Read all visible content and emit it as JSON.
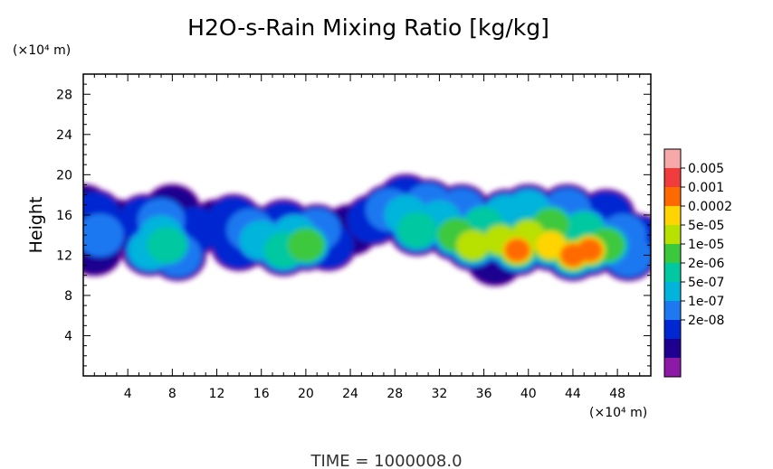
{
  "chart_data": {
    "type": "heatmap",
    "title": "H2O-s-Rain Mixing Ratio [kg/kg]",
    "ylabel": "Height",
    "x_unit": "(×10⁴ m)",
    "y_unit": "(×10⁴ m)",
    "xlim": [
      0,
      51
    ],
    "ylim": [
      0,
      30
    ],
    "x_ticks": [
      4,
      8,
      12,
      16,
      20,
      24,
      28,
      32,
      36,
      40,
      44,
      48
    ],
    "y_ticks": [
      4,
      8,
      12,
      16,
      20,
      24,
      28
    ],
    "footer": "TIME =  1000008.0",
    "colorbar": {
      "labels": [
        "0.005",
        "0.001",
        "0.0002",
        "5e-05",
        "1e-05",
        "2e-06",
        "5e-07",
        "1e-07",
        "2e-08"
      ],
      "colors": [
        "#f7a8a8",
        "#f03c3c",
        "#ff6a00",
        "#ffd400",
        "#b8e000",
        "#3cc83c",
        "#00c8a0",
        "#00b4dc",
        "#1e78f0",
        "#0028d2",
        "#1e0090",
        "#8c1aa6"
      ]
    },
    "cells": [
      {
        "x": 0,
        "y": 16.5,
        "level": 1
      },
      {
        "x": 1,
        "y": 16,
        "level": 2
      },
      {
        "x": 1.5,
        "y": 14,
        "level": 3
      },
      {
        "x": 1,
        "y": 12.5,
        "level": 1
      },
      {
        "x": 3,
        "y": 15,
        "level": 1
      },
      {
        "x": 5.5,
        "y": 15.5,
        "level": 2
      },
      {
        "x": 7,
        "y": 15.5,
        "level": 3
      },
      {
        "x": 7,
        "y": 14,
        "level": 4
      },
      {
        "x": 7.5,
        "y": 13,
        "level": 5
      },
      {
        "x": 6,
        "y": 12.5,
        "level": 4
      },
      {
        "x": 8.5,
        "y": 12,
        "level": 3
      },
      {
        "x": 8,
        "y": 16.5,
        "level": 1
      },
      {
        "x": 10,
        "y": 14.5,
        "level": 2
      },
      {
        "x": 12,
        "y": 15,
        "level": 1
      },
      {
        "x": 13.5,
        "y": 15.5,
        "level": 2
      },
      {
        "x": 15,
        "y": 14.5,
        "level": 3
      },
      {
        "x": 16,
        "y": 13.5,
        "level": 4
      },
      {
        "x": 14,
        "y": 13,
        "level": 2
      },
      {
        "x": 18,
        "y": 15,
        "level": 2
      },
      {
        "x": 19,
        "y": 14,
        "level": 4
      },
      {
        "x": 20,
        "y": 13,
        "level": 6
      },
      {
        "x": 18,
        "y": 12.5,
        "level": 5
      },
      {
        "x": 21,
        "y": 14.5,
        "level": 3
      },
      {
        "x": 22,
        "y": 13,
        "level": 2
      },
      {
        "x": 24,
        "y": 14.5,
        "level": 1
      },
      {
        "x": 26,
        "y": 15.5,
        "level": 2
      },
      {
        "x": 27.5,
        "y": 16.5,
        "level": 3
      },
      {
        "x": 29,
        "y": 16,
        "level": 4
      },
      {
        "x": 30,
        "y": 14.5,
        "level": 5
      },
      {
        "x": 29,
        "y": 17.5,
        "level": 2
      },
      {
        "x": 31,
        "y": 17,
        "level": 3
      },
      {
        "x": 32,
        "y": 15.5,
        "level": 4
      },
      {
        "x": 33.5,
        "y": 14,
        "level": 6
      },
      {
        "x": 35,
        "y": 13,
        "level": 7
      },
      {
        "x": 34,
        "y": 16.5,
        "level": 3
      },
      {
        "x": 36,
        "y": 15,
        "level": 5
      },
      {
        "x": 37.5,
        "y": 13.5,
        "level": 7
      },
      {
        "x": 39,
        "y": 12.5,
        "level": 9
      },
      {
        "x": 40,
        "y": 14,
        "level": 7
      },
      {
        "x": 38,
        "y": 16,
        "level": 4
      },
      {
        "x": 40,
        "y": 16.5,
        "level": 4
      },
      {
        "x": 42,
        "y": 15,
        "level": 6
      },
      {
        "x": 42,
        "y": 13,
        "level": 8
      },
      {
        "x": 44,
        "y": 12,
        "level": 9
      },
      {
        "x": 45.5,
        "y": 12.5,
        "level": 9
      },
      {
        "x": 43.5,
        "y": 16.5,
        "level": 3
      },
      {
        "x": 45,
        "y": 14.5,
        "level": 5
      },
      {
        "x": 47,
        "y": 13,
        "level": 6
      },
      {
        "x": 48.5,
        "y": 14,
        "level": 3
      },
      {
        "x": 50,
        "y": 13.5,
        "level": 2
      },
      {
        "x": 47,
        "y": 16,
        "level": 2
      },
      {
        "x": 37,
        "y": 11.5,
        "level": 1
      },
      {
        "x": 49,
        "y": 12,
        "level": 3
      }
    ]
  }
}
